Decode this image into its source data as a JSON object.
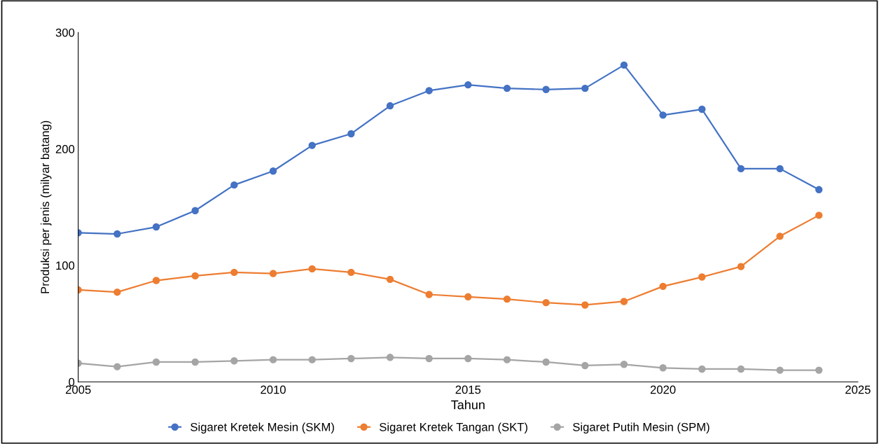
{
  "chart_data": {
    "type": "line",
    "xlabel": "Tahun",
    "ylabel": "Produksi per jenis (milyar batang)",
    "x": [
      2005,
      2006,
      2007,
      2008,
      2009,
      2010,
      2011,
      2012,
      2013,
      2014,
      2015,
      2016,
      2017,
      2018,
      2019,
      2020,
      2021,
      2022,
      2023,
      2024
    ],
    "series": [
      {
        "name": "Sigaret Kretek Mesin (SKM)",
        "color": "#4472c4",
        "values": [
          128,
          127,
          133,
          147,
          169,
          181,
          203,
          213,
          237,
          250,
          255,
          252,
          251,
          252,
          272,
          229,
          234,
          183,
          183,
          165
        ]
      },
      {
        "name": "Sigaret Kretek Tangan (SKT)",
        "color": "#ed7d31",
        "values": [
          79,
          77,
          87,
          91,
          94,
          93,
          97,
          94,
          88,
          75,
          73,
          71,
          68,
          66,
          69,
          82,
          90,
          99,
          125,
          143
        ]
      },
      {
        "name": "Sigaret Putih Mesin (SPM)",
        "color": "#a5a5a5",
        "values": [
          16,
          13,
          17,
          17,
          18,
          19,
          19,
          20,
          21,
          20,
          20,
          19,
          17,
          14,
          15,
          12,
          11,
          11,
          10,
          10
        ]
      }
    ],
    "xlim": [
      2005,
      2025
    ],
    "xticks": [
      2005,
      2010,
      2015,
      2020,
      2025
    ],
    "ylim": [
      0,
      300
    ],
    "yticks": [
      0,
      100,
      200,
      300
    ],
    "grid": false,
    "legend": "bottom",
    "marker": "circle",
    "line_style": "solid"
  }
}
